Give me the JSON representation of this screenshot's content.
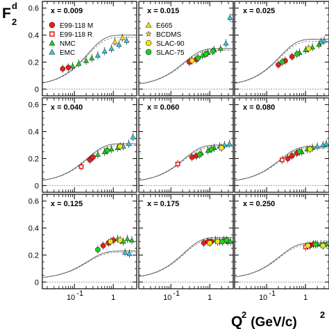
{
  "chart_data": {
    "type": "scatter",
    "y_axis": {
      "symbol": "F",
      "superscript": "d",
      "subscript": "2",
      "ylim": [
        -0.05,
        0.65
      ],
      "ticks": [
        0,
        0.2,
        0.4,
        0.6
      ],
      "tick_labels": [
        "0",
        "0.2",
        "0.4",
        "0.6"
      ]
    },
    "x_axis": {
      "scale": "log",
      "xlim": [
        0.015,
        4.0
      ],
      "tick_labels": [
        "10",
        "-1",
        "1"
      ],
      "label_parts": [
        "Q",
        "2",
        " (GeV/c)",
        "2"
      ]
    },
    "reference_line_y": 0,
    "legend": [
      {
        "name": "E99-118 M",
        "marker": "circle",
        "color": "#e8201a",
        "panel": 0
      },
      {
        "name": "E99-118 R",
        "marker": "open-square",
        "color": "#e8201a",
        "panel": 0
      },
      {
        "name": "NMC",
        "marker": "triangle",
        "color": "#22cc22",
        "panel": 0
      },
      {
        "name": "EMC",
        "marker": "triangle",
        "color": "#33ccdd",
        "panel": 0
      },
      {
        "name": "E665",
        "marker": "triangle",
        "color": "#f2e21a",
        "panel": 1
      },
      {
        "name": "BCDMS",
        "marker": "star",
        "color": "#f2e21a",
        "panel": 1
      },
      {
        "name": "SLAC-90",
        "marker": "circle",
        "color": "#f2e21a",
        "panel": 1
      },
      {
        "name": "SLAC-75",
        "marker": "circle",
        "color": "#22cc22",
        "panel": 1
      }
    ],
    "panels": [
      {
        "label": "x = 0.009",
        "points": [
          [
            0.05,
            0.15
          ],
          [
            0.07,
            0.16
          ],
          [
            0.09,
            0.17
          ],
          [
            0.13,
            0.19
          ],
          [
            0.2,
            0.21
          ],
          [
            0.28,
            0.23
          ],
          [
            0.4,
            0.25
          ],
          [
            0.6,
            0.28
          ],
          [
            0.9,
            0.3
          ],
          [
            1.4,
            0.33
          ],
          [
            2.2,
            0.36
          ],
          [
            1.1,
            0.35
          ],
          [
            1.7,
            0.38
          ]
        ],
        "series": [
          0,
          0,
          2,
          2,
          2,
          2,
          3,
          3,
          3,
          3,
          3,
          4,
          4
        ]
      },
      {
        "label": "x = 0.015",
        "points": [
          [
            0.3,
            0.2
          ],
          [
            0.45,
            0.22
          ],
          [
            0.65,
            0.25
          ],
          [
            0.9,
            0.27
          ],
          [
            1.3,
            0.29
          ],
          [
            1.9,
            0.3
          ],
          [
            2.6,
            0.34
          ],
          [
            3.3,
            0.53
          ],
          [
            0.35,
            0.21
          ],
          [
            0.5,
            0.23
          ],
          [
            0.8,
            0.26
          ],
          [
            1.2,
            0.28
          ]
        ],
        "series": [
          0,
          0,
          2,
          2,
          2,
          2,
          3,
          3,
          6,
          7,
          7,
          7
        ]
      },
      {
        "label": "x = 0.025",
        "points": [
          [
            0.2,
            0.18
          ],
          [
            0.3,
            0.21
          ],
          [
            0.45,
            0.24
          ],
          [
            0.7,
            0.27
          ],
          [
            1.0,
            0.29
          ],
          [
            1.5,
            0.31
          ],
          [
            2.2,
            0.33
          ],
          [
            3.0,
            0.36
          ],
          [
            0.25,
            0.2
          ],
          [
            0.6,
            0.26
          ],
          [
            1.2,
            0.3
          ],
          [
            2.5,
            0.35
          ]
        ],
        "series": [
          0,
          0,
          0,
          2,
          2,
          2,
          2,
          3,
          7,
          7,
          6,
          3
        ]
      },
      {
        "label": "x = 0.040",
        "points": [
          [
            0.15,
            0.14
          ],
          [
            0.25,
            0.19
          ],
          [
            0.3,
            0.21
          ],
          [
            0.4,
            0.23
          ],
          [
            0.6,
            0.25
          ],
          [
            0.9,
            0.27
          ],
          [
            1.3,
            0.28
          ],
          [
            1.8,
            0.29
          ],
          [
            2.5,
            0.31
          ],
          [
            3.2,
            0.36
          ],
          [
            0.7,
            0.26
          ],
          [
            1.5,
            0.29
          ]
        ],
        "series": [
          1,
          0,
          0,
          2,
          2,
          2,
          2,
          3,
          3,
          3,
          7,
          6
        ]
      },
      {
        "label": "x = 0.060",
        "points": [
          [
            0.15,
            0.16
          ],
          [
            0.35,
            0.21
          ],
          [
            0.45,
            0.22
          ],
          [
            0.6,
            0.24
          ],
          [
            0.9,
            0.26
          ],
          [
            1.3,
            0.28
          ],
          [
            1.8,
            0.29
          ],
          [
            2.4,
            0.3
          ],
          [
            3.2,
            0.31
          ],
          [
            0.55,
            0.23
          ],
          [
            1.1,
            0.27
          ],
          [
            2.0,
            0.28
          ]
        ],
        "series": [
          1,
          0,
          0,
          2,
          2,
          2,
          3,
          3,
          3,
          7,
          7,
          6
        ]
      },
      {
        "label": "x = 0.080",
        "points": [
          [
            0.25,
            0.19
          ],
          [
            0.35,
            0.2
          ],
          [
            0.45,
            0.22
          ],
          [
            0.6,
            0.24
          ],
          [
            0.8,
            0.25
          ],
          [
            1.1,
            0.27
          ],
          [
            1.5,
            0.28
          ],
          [
            2.0,
            0.29
          ],
          [
            2.8,
            0.3
          ],
          [
            3.4,
            0.31
          ],
          [
            0.7,
            0.25
          ],
          [
            1.3,
            0.27
          ]
        ],
        "series": [
          1,
          0,
          0,
          0,
          2,
          2,
          2,
          3,
          3,
          3,
          7,
          6
        ]
      },
      {
        "label": "x = 0.125",
        "points": [
          [
            0.4,
            0.24
          ],
          [
            0.55,
            0.27
          ],
          [
            0.75,
            0.29
          ],
          [
            1.0,
            0.31
          ],
          [
            1.3,
            0.32
          ],
          [
            1.8,
            0.3
          ],
          [
            2.3,
            0.32
          ],
          [
            3.0,
            0.31
          ],
          [
            0.85,
            0.3
          ],
          [
            1.5,
            0.31
          ],
          [
            2.0,
            0.22
          ],
          [
            2.6,
            0.21
          ]
        ],
        "series": [
          7,
          0,
          0,
          0,
          2,
          2,
          2,
          2,
          6,
          6,
          3,
          3
        ]
      },
      {
        "label": "x = 0.175",
        "points": [
          [
            0.7,
            0.29
          ],
          [
            0.9,
            0.3
          ],
          [
            1.1,
            0.3
          ],
          [
            1.4,
            0.31
          ],
          [
            1.8,
            0.3
          ],
          [
            2.3,
            0.31
          ],
          [
            2.9,
            0.3
          ],
          [
            3.4,
            0.3
          ],
          [
            1.0,
            0.29
          ],
          [
            1.6,
            0.3
          ],
          [
            2.1,
            0.3
          ],
          [
            2.7,
            0.31
          ]
        ],
        "series": [
          0,
          0,
          0,
          2,
          2,
          2,
          2,
          2,
          6,
          6,
          7,
          7
        ]
      },
      {
        "label": "x = 0.250",
        "points": [
          [
            1.0,
            0.26
          ],
          [
            1.3,
            0.27
          ],
          [
            1.6,
            0.28
          ],
          [
            2.0,
            0.28
          ],
          [
            2.5,
            0.28
          ],
          [
            3.0,
            0.28
          ],
          [
            3.4,
            0.28
          ],
          [
            1.15,
            0.27
          ],
          [
            1.8,
            0.28
          ],
          [
            2.8,
            0.27
          ]
        ],
        "series": [
          1,
          0,
          0,
          2,
          2,
          2,
          2,
          6,
          7,
          6
        ]
      }
    ]
  }
}
